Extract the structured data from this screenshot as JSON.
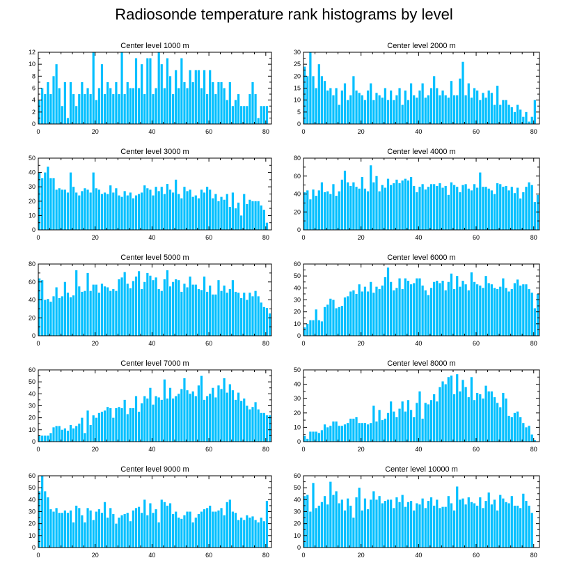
{
  "title": "Radiosonde temperature rank histograms by level",
  "colors": {
    "bar": "#00BFFF",
    "axis": "#000000",
    "background": "#ffffff"
  },
  "chart_data": [
    {
      "type": "bar",
      "title": "Center level 1000 m",
      "xlabel": "",
      "ylabel": "",
      "xlim": [
        0,
        82
      ],
      "ylim": [
        0,
        12
      ],
      "xticks": [
        0,
        20,
        40,
        60,
        80
      ],
      "yticks": [
        0,
        2,
        4,
        6,
        8,
        10,
        12
      ],
      "values": [
        4,
        6,
        5,
        7,
        5,
        8,
        10,
        6,
        3,
        7,
        1,
        7,
        5,
        3,
        5,
        7,
        5,
        6,
        5,
        12,
        4,
        6,
        10,
        5,
        7,
        6,
        5,
        7,
        5,
        12,
        5,
        7,
        6,
        6,
        11,
        6,
        10,
        5,
        11,
        11,
        5,
        6,
        12,
        10,
        6,
        11,
        8,
        5,
        9,
        6,
        11,
        7,
        6,
        9,
        7,
        9,
        9,
        6,
        9,
        5,
        9,
        7,
        5,
        7,
        7,
        6,
        4,
        7,
        3,
        4,
        5,
        3,
        3,
        3,
        5,
        7,
        5,
        1,
        3,
        3,
        3
      ]
    },
    {
      "type": "bar",
      "title": "Center level 2000 m",
      "xlabel": "",
      "ylabel": "",
      "xlim": [
        0,
        82
      ],
      "ylim": [
        0,
        30
      ],
      "xticks": [
        0,
        20,
        40,
        60,
        80
      ],
      "yticks": [
        0,
        5,
        10,
        15,
        20,
        25,
        30
      ],
      "values": [
        24,
        20,
        30,
        20,
        15,
        25,
        20,
        18,
        14,
        15,
        12,
        15,
        8,
        14,
        17,
        10,
        12,
        20,
        14,
        13,
        12,
        10,
        14,
        17,
        10,
        13,
        12,
        11,
        15,
        10,
        14,
        10,
        12,
        15,
        8,
        14,
        10,
        17,
        12,
        11,
        14,
        17,
        11,
        12,
        15,
        20,
        15,
        12,
        14,
        12,
        11,
        18,
        12,
        12,
        19,
        26,
        12,
        17,
        11,
        15,
        14,
        10,
        13,
        11,
        14,
        13,
        8,
        16,
        8,
        10,
        10,
        8,
        7,
        5,
        8,
        6,
        3,
        5,
        1,
        3,
        10
      ]
    },
    {
      "type": "bar",
      "title": "Center level 3000 m",
      "xlabel": "",
      "ylabel": "",
      "xlim": [
        0,
        82
      ],
      "ylim": [
        0,
        50
      ],
      "xticks": [
        0,
        20,
        40,
        60,
        80
      ],
      "yticks": [
        0,
        10,
        20,
        30,
        40,
        50
      ],
      "values": [
        40,
        36,
        40,
        44,
        36,
        36,
        28,
        29,
        28,
        28,
        26,
        40,
        30,
        26,
        24,
        27,
        29,
        28,
        26,
        40,
        29,
        28,
        25,
        26,
        25,
        31,
        26,
        29,
        24,
        23,
        27,
        24,
        26,
        22,
        24,
        25,
        26,
        31,
        29,
        28,
        24,
        30,
        27,
        30,
        25,
        32,
        28,
        26,
        35,
        25,
        22,
        30,
        27,
        28,
        23,
        24,
        22,
        28,
        26,
        30,
        28,
        22,
        25,
        20,
        23,
        21,
        25,
        16,
        26,
        15,
        19,
        10,
        25,
        18,
        21,
        20,
        20,
        20,
        17,
        14,
        5
      ]
    },
    {
      "type": "bar",
      "title": "Center level 4000 m",
      "xlabel": "",
      "ylabel": "",
      "xlim": [
        0,
        82
      ],
      "ylim": [
        0,
        80
      ],
      "xticks": [
        0,
        20,
        40,
        60,
        80
      ],
      "yticks": [
        0,
        20,
        40,
        60,
        80
      ],
      "values": [
        42,
        44,
        34,
        45,
        38,
        44,
        53,
        42,
        43,
        40,
        51,
        38,
        43,
        56,
        66,
        53,
        49,
        53,
        48,
        46,
        59,
        46,
        43,
        72,
        53,
        60,
        43,
        50,
        47,
        57,
        50,
        52,
        56,
        52,
        55,
        57,
        55,
        59,
        49,
        42,
        48,
        51,
        45,
        48,
        51,
        51,
        49,
        52,
        47,
        49,
        39,
        53,
        50,
        48,
        42,
        50,
        51,
        46,
        44,
        51,
        47,
        64,
        48,
        48,
        46,
        44,
        40,
        52,
        51,
        48,
        49,
        44,
        48,
        41,
        47,
        35,
        42,
        48,
        53,
        50,
        31,
        39
      ]
    },
    {
      "type": "bar",
      "title": "Center level 5000 m",
      "xlabel": "",
      "ylabel": "",
      "xlim": [
        0,
        82
      ],
      "ylim": [
        0,
        80
      ],
      "xticks": [
        0,
        20,
        40,
        60,
        80
      ],
      "yticks": [
        0,
        20,
        40,
        60,
        80
      ],
      "values": [
        64,
        62,
        40,
        41,
        38,
        44,
        54,
        42,
        44,
        60,
        48,
        43,
        45,
        73,
        55,
        49,
        50,
        70,
        50,
        57,
        57,
        48,
        58,
        55,
        54,
        50,
        52,
        50,
        63,
        65,
        71,
        58,
        53,
        61,
        66,
        72,
        52,
        60,
        70,
        67,
        62,
        65,
        52,
        50,
        63,
        73,
        55,
        60,
        63,
        62,
        49,
        58,
        54,
        66,
        57,
        57,
        52,
        51,
        66,
        49,
        56,
        46,
        46,
        62,
        50,
        56,
        48,
        52,
        62,
        49,
        48,
        42,
        48,
        40,
        48,
        44,
        50,
        44,
        37,
        32,
        31,
        25
      ]
    },
    {
      "type": "bar",
      "title": "Center level 6000 m",
      "xlabel": "",
      "ylabel": "",
      "xlim": [
        0,
        82
      ],
      "ylim": [
        0,
        60
      ],
      "xticks": [
        0,
        20,
        40,
        60,
        80
      ],
      "yticks": [
        0,
        10,
        20,
        30,
        40,
        50,
        60
      ],
      "values": [
        7,
        10,
        13,
        13,
        22,
        13,
        12,
        24,
        26,
        31,
        30,
        23,
        24,
        25,
        32,
        33,
        37,
        38,
        35,
        43,
        37,
        41,
        37,
        45,
        36,
        41,
        39,
        42,
        49,
        57,
        45,
        38,
        40,
        48,
        39,
        48,
        46,
        43,
        44,
        48,
        48,
        42,
        38,
        34,
        40,
        45,
        46,
        44,
        46,
        38,
        45,
        52,
        39,
        50,
        41,
        46,
        43,
        38,
        53,
        45,
        43,
        42,
        40,
        50,
        44,
        43,
        40,
        39,
        41,
        48,
        40,
        37,
        39,
        44,
        47,
        42,
        43,
        43,
        39,
        36,
        23,
        35
      ]
    },
    {
      "type": "bar",
      "title": "Center level 7000 m",
      "xlabel": "",
      "ylabel": "",
      "xlim": [
        0,
        82
      ],
      "ylim": [
        0,
        60
      ],
      "xticks": [
        0,
        20,
        40,
        60,
        80
      ],
      "yticks": [
        0,
        10,
        20,
        30,
        40,
        50,
        60
      ],
      "values": [
        5,
        5,
        5,
        5,
        7,
        12,
        13,
        13,
        10,
        11,
        9,
        14,
        11,
        13,
        15,
        20,
        7,
        26,
        14,
        22,
        20,
        24,
        25,
        26,
        29,
        28,
        20,
        28,
        29,
        28,
        35,
        23,
        28,
        28,
        38,
        25,
        32,
        38,
        36,
        45,
        31,
        38,
        37,
        35,
        52,
        36,
        45,
        36,
        38,
        40,
        44,
        53,
        43,
        40,
        42,
        38,
        47,
        55,
        35,
        38,
        40,
        45,
        37,
        47,
        44,
        53,
        41,
        48,
        43,
        35,
        41,
        34,
        36,
        30,
        27,
        29,
        33,
        27,
        24,
        24,
        22,
        22
      ]
    },
    {
      "type": "bar",
      "title": "Center level 8000 m",
      "xlabel": "",
      "ylabel": "",
      "xlim": [
        0,
        82
      ],
      "ylim": [
        0,
        50
      ],
      "xticks": [
        0,
        20,
        40,
        60,
        80
      ],
      "yticks": [
        0,
        10,
        20,
        30,
        40,
        50
      ],
      "values": [
        4,
        2,
        7,
        7,
        7,
        6,
        8,
        12,
        10,
        11,
        14,
        14,
        11,
        11,
        12,
        13,
        16,
        16,
        17,
        13,
        13,
        13,
        12,
        13,
        25,
        14,
        22,
        15,
        16,
        20,
        28,
        21,
        17,
        23,
        28,
        21,
        29,
        22,
        17,
        27,
        35,
        16,
        27,
        26,
        29,
        33,
        28,
        38,
        42,
        40,
        45,
        46,
        33,
        47,
        35,
        43,
        38,
        31,
        45,
        29,
        34,
        33,
        30,
        39,
        35,
        35,
        31,
        27,
        24,
        34,
        30,
        18,
        17,
        20,
        21,
        17,
        13,
        10,
        11,
        5,
        1
      ]
    },
    {
      "type": "bar",
      "title": "Center level 9000 m",
      "xlabel": "",
      "ylabel": "",
      "xlim": [
        0,
        82
      ],
      "ylim": [
        0,
        60
      ],
      "xticks": [
        0,
        20,
        40,
        60,
        80
      ],
      "yticks": [
        0,
        10,
        20,
        30,
        40,
        50,
        60
      ],
      "values": [
        47,
        60,
        47,
        42,
        32,
        30,
        33,
        29,
        29,
        31,
        29,
        31,
        21,
        35,
        33,
        27,
        21,
        33,
        31,
        23,
        30,
        32,
        29,
        38,
        25,
        33,
        28,
        20,
        25,
        27,
        28,
        29,
        22,
        31,
        33,
        34,
        29,
        40,
        27,
        37,
        29,
        32,
        21,
        40,
        38,
        35,
        37,
        28,
        30,
        25,
        24,
        27,
        30,
        30,
        21,
        25,
        28,
        30,
        32,
        33,
        35,
        30,
        30,
        31,
        33,
        27,
        38,
        40,
        30,
        29,
        23,
        25,
        23,
        27,
        25,
        26,
        23,
        21,
        25,
        22,
        39
      ]
    },
    {
      "type": "bar",
      "title": "Center level 10000 m",
      "xlabel": "",
      "ylabel": "",
      "xlim": [
        0,
        82
      ],
      "ylim": [
        0,
        60
      ],
      "xticks": [
        0,
        20,
        40,
        60,
        80
      ],
      "yticks": [
        0,
        10,
        20,
        30,
        40,
        50,
        60
      ],
      "values": [
        43,
        44,
        30,
        54,
        33,
        35,
        38,
        43,
        36,
        55,
        44,
        47,
        37,
        40,
        31,
        41,
        35,
        25,
        42,
        50,
        31,
        41,
        32,
        40,
        47,
        40,
        43,
        37,
        39,
        40,
        40,
        33,
        42,
        38,
        44,
        34,
        38,
        39,
        31,
        37,
        36,
        41,
        33,
        39,
        42,
        35,
        40,
        33,
        34,
        34,
        43,
        37,
        31,
        51,
        40,
        41,
        36,
        42,
        38,
        37,
        35,
        42,
        33,
        39,
        46,
        36,
        40,
        31,
        44,
        41,
        38,
        37,
        43,
        35,
        35,
        33,
        45,
        39,
        35,
        29
      ]
    }
  ]
}
